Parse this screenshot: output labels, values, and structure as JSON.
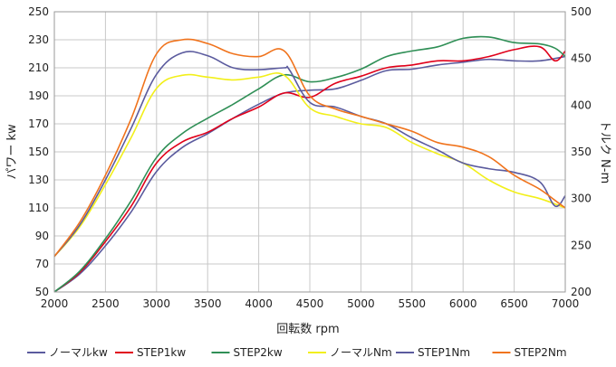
{
  "chart_data": {
    "type": "line",
    "xlabel": "回転数 rpm",
    "ylabel_left": "パワー kw",
    "ylabel_right": "トルク N-m",
    "x_range": [
      2000,
      7000
    ],
    "x_ticks": [
      "2000",
      "2500",
      "3000",
      "3500",
      "4000",
      "4500",
      "5000",
      "5500",
      "6000",
      "6500",
      "7000"
    ],
    "y_left_range": [
      50,
      250
    ],
    "y_left_ticks": [
      "50",
      "70",
      "90",
      "110",
      "130",
      "150",
      "170",
      "190",
      "210",
      "230",
      "250"
    ],
    "y_right_range": [
      200,
      500
    ],
    "y_right_ticks": [
      "200",
      "250",
      "300",
      "350",
      "400",
      "450",
      "500"
    ],
    "grid": true,
    "legend_position": "bottom",
    "series": [
      {
        "name": "ノーマルkw",
        "axis": "left",
        "color": "#5b5b9e",
        "x": [
          2000,
          2250,
          2500,
          2750,
          3000,
          3250,
          3500,
          3750,
          4000,
          4250,
          4500,
          4750,
          5000,
          5250,
          5500,
          5750,
          6000,
          6250,
          6500,
          6750,
          7000
        ],
        "y": [
          50,
          63,
          83,
          107,
          136,
          153,
          163,
          174,
          184,
          192,
          194,
          195,
          201,
          208,
          209,
          212,
          214,
          216,
          215,
          215,
          218
        ]
      },
      {
        "name": "STEP1kw",
        "axis": "left",
        "color": "#e0001a",
        "x": [
          2000,
          2250,
          2500,
          2750,
          3000,
          3250,
          3500,
          3750,
          4000,
          4250,
          4500,
          4750,
          5000,
          5250,
          5500,
          5750,
          6000,
          6250,
          6500,
          6750,
          6900,
          7000
        ],
        "y": [
          50,
          64,
          86,
          111,
          142,
          157,
          164,
          174,
          182,
          192,
          189,
          199,
          204,
          210,
          212,
          215,
          215,
          218,
          223,
          225,
          215,
          222
        ]
      },
      {
        "name": "STEP2kw",
        "axis": "left",
        "color": "#2f8f56",
        "x": [
          2000,
          2250,
          2500,
          2750,
          3000,
          3250,
          3500,
          3750,
          4000,
          4250,
          4500,
          4750,
          5000,
          5250,
          5500,
          5750,
          6000,
          6250,
          6500,
          6750,
          6900,
          7000
        ],
        "y": [
          50,
          65,
          88,
          115,
          146,
          163,
          174,
          184,
          195,
          205,
          200,
          203,
          209,
          218,
          222,
          225,
          231,
          232,
          228,
          227,
          224,
          218
        ]
      },
      {
        "name": "ノーマルNm",
        "axis": "right",
        "color": "#f2ef1a",
        "x": [
          2000,
          2250,
          2500,
          2750,
          3000,
          3250,
          3500,
          3750,
          4000,
          4250,
          4500,
          4750,
          5000,
          5250,
          5500,
          5750,
          6000,
          6250,
          6500,
          6750,
          7000
        ],
        "y": [
          238,
          270,
          315,
          365,
          418,
          432,
          430,
          427,
          430,
          432,
          397,
          388,
          380,
          376,
          360,
          348,
          338,
          320,
          307,
          300,
          290
        ]
      },
      {
        "name": "STEP1Nm",
        "axis": "right",
        "color": "#5b5b9e",
        "x": [
          2000,
          2250,
          2500,
          2750,
          3000,
          3250,
          3500,
          3750,
          4000,
          4250,
          4300,
          4500,
          4750,
          5000,
          5250,
          5500,
          5750,
          6000,
          6250,
          6500,
          6750,
          6900,
          7000
        ],
        "y": [
          238,
          272,
          320,
          375,
          433,
          456,
          453,
          440,
          438,
          440,
          438,
          403,
          398,
          388,
          380,
          365,
          352,
          338,
          332,
          328,
          318,
          292,
          303
        ]
      },
      {
        "name": "STEP2Nm",
        "axis": "right",
        "color": "#f0731c",
        "x": [
          2000,
          2250,
          2500,
          2750,
          3000,
          3250,
          3500,
          3750,
          4000,
          4250,
          4500,
          4750,
          5000,
          5250,
          5500,
          5750,
          6000,
          6250,
          6500,
          6750,
          6900,
          7000
        ],
        "y": [
          238,
          275,
          325,
          385,
          455,
          470,
          466,
          455,
          452,
          458,
          410,
          396,
          388,
          380,
          372,
          360,
          355,
          345,
          325,
          310,
          298,
          290
        ]
      }
    ]
  }
}
